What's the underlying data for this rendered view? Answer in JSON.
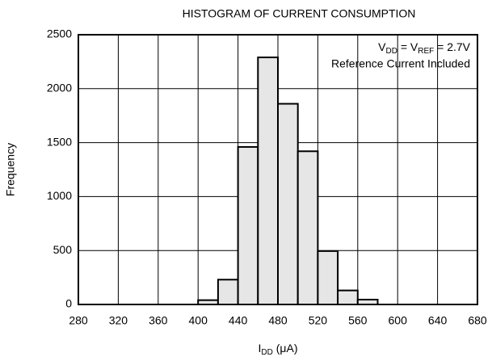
{
  "chart_data": {
    "type": "histogram",
    "title": "HISTOGRAM OF CURRENT CONSUMPTION",
    "xlabel": [
      "I",
      "DD",
      " (μA)"
    ],
    "ylabel": "Frequency",
    "annotation": [
      [
        "V",
        "DD",
        " = V",
        "REF",
        " = 2.7V"
      ],
      "Reference Current Included"
    ],
    "bins": [
      400,
      420,
      440,
      460,
      480,
      500,
      520,
      540,
      560,
      580
    ],
    "values": [
      40,
      230,
      1460,
      2290,
      1860,
      1420,
      495,
      130,
      45
    ],
    "color": "#e6e6e6",
    "xlim": [
      280,
      680
    ],
    "xticks": [
      280,
      320,
      360,
      400,
      440,
      480,
      520,
      560,
      600,
      640,
      680
    ],
    "ylim": [
      0,
      2500
    ],
    "yticks": [
      0,
      500,
      1000,
      1500,
      2000,
      2500
    ],
    "grid": true
  }
}
